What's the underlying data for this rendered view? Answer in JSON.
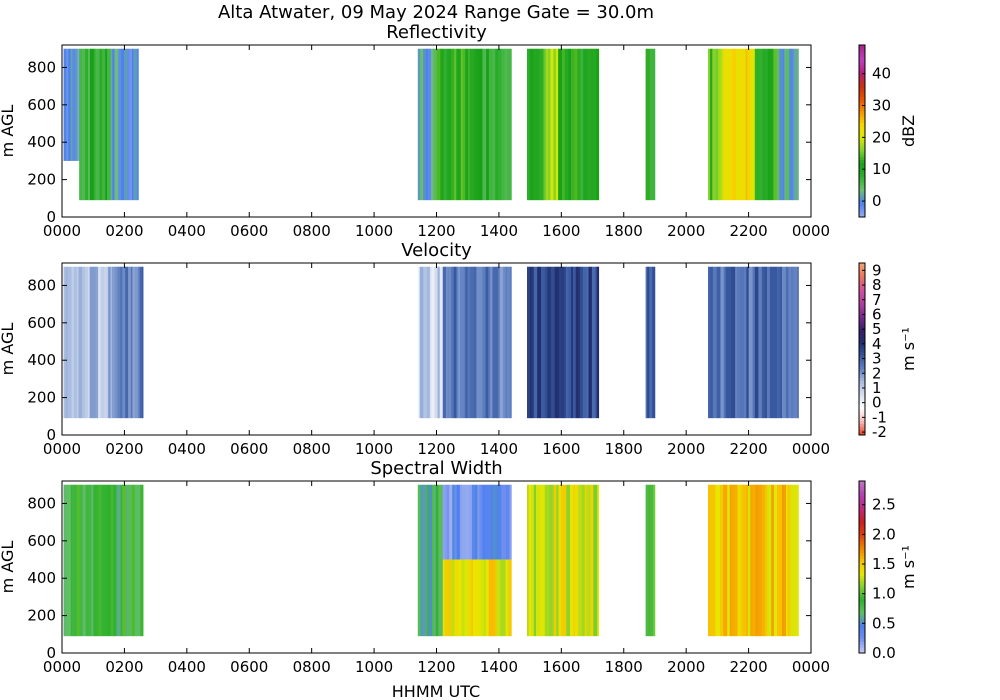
{
  "figure": {
    "suptitle": "Alta Atwater, 09 May 2024 Range Gate = 30.0m",
    "xlabel": "HHMM UTC"
  },
  "chart_data": [
    {
      "type": "heatmap",
      "title": "Reflectivity",
      "ylabel": "m AGL",
      "x_ticks": [
        "0000",
        "0200",
        "0400",
        "0600",
        "0800",
        "1000",
        "1200",
        "1400",
        "1600",
        "1800",
        "2000",
        "2200",
        "0000"
      ],
      "y_ticks": [
        "0",
        "200",
        "400",
        "600",
        "800"
      ],
      "xlim_hours": [
        0,
        24
      ],
      "ylim": [
        0,
        920
      ],
      "colorbar": {
        "label": "dBZ",
        "ticks": [
          "0",
          "10",
          "20",
          "30",
          "40"
        ],
        "range": [
          -5,
          49
        ]
      },
      "echo_segments": [
        {
          "t0": 0.05,
          "t1": 0.55,
          "top": 900,
          "bottom": 300,
          "value": -1
        },
        {
          "t0": 0.55,
          "t1": 1.55,
          "top": 900,
          "bottom": 90,
          "value": 8
        },
        {
          "t0": 1.55,
          "t1": 2.45,
          "top": 900,
          "bottom": 90,
          "value": 0
        },
        {
          "t0": 11.4,
          "t1": 12.0,
          "top": 900,
          "bottom": 90,
          "value": 1
        },
        {
          "t0": 12.0,
          "t1": 13.2,
          "top": 900,
          "bottom": 90,
          "value": 11
        },
        {
          "t0": 13.2,
          "t1": 14.4,
          "top": 900,
          "bottom": 90,
          "value": 9
        },
        {
          "t0": 14.9,
          "t1": 15.4,
          "top": 900,
          "bottom": 90,
          "value": 9
        },
        {
          "t0": 15.4,
          "t1": 15.9,
          "top": 900,
          "bottom": 90,
          "value": 17
        },
        {
          "t0": 15.9,
          "t1": 17.2,
          "top": 900,
          "bottom": 90,
          "value": 10
        },
        {
          "t0": 18.7,
          "t1": 19.0,
          "top": 900,
          "bottom": 90,
          "value": 9
        },
        {
          "t0": 20.7,
          "t1": 21.2,
          "top": 900,
          "bottom": 90,
          "value": 16
        },
        {
          "t0": 21.2,
          "t1": 22.2,
          "top": 900,
          "bottom": 90,
          "value": 24
        },
        {
          "t0": 22.2,
          "t1": 22.9,
          "top": 900,
          "bottom": 90,
          "value": 11
        },
        {
          "t0": 22.9,
          "t1": 23.6,
          "top": 900,
          "bottom": 90,
          "value": 1
        }
      ]
    },
    {
      "type": "heatmap",
      "title": "Velocity",
      "ylabel": "m AGL",
      "x_ticks": [
        "0000",
        "0200",
        "0400",
        "0600",
        "0800",
        "1000",
        "1200",
        "1400",
        "1600",
        "1800",
        "2000",
        "2200",
        "0000"
      ],
      "y_ticks": [
        "0",
        "200",
        "400",
        "600",
        "800"
      ],
      "xlim_hours": [
        0,
        24
      ],
      "ylim": [
        0,
        920
      ],
      "colorbar": {
        "label": "m s⁻¹",
        "ticks": [
          "-2",
          "-1",
          "0",
          "1",
          "2",
          "3",
          "4",
          "5",
          "6",
          "7",
          "8",
          "9"
        ],
        "range": [
          -2.2,
          9.5
        ]
      },
      "echo_segments": [
        {
          "t0": 0.05,
          "t1": 1.6,
          "top": 900,
          "bottom": 90,
          "value": 1.2
        },
        {
          "t0": 1.6,
          "t1": 2.6,
          "top": 900,
          "bottom": 90,
          "value": 2.6
        },
        {
          "t0": 11.4,
          "t1": 12.2,
          "top": 900,
          "bottom": 90,
          "value": 0.8
        },
        {
          "t0": 12.2,
          "t1": 14.4,
          "top": 900,
          "bottom": 90,
          "value": 2.5
        },
        {
          "t0": 14.9,
          "t1": 17.2,
          "top": 900,
          "bottom": 90,
          "value": 3.6
        },
        {
          "t0": 18.7,
          "t1": 19.0,
          "top": 900,
          "bottom": 90,
          "value": 3.4
        },
        {
          "t0": 20.7,
          "t1": 23.6,
          "top": 900,
          "bottom": 90,
          "value": 2.8
        }
      ]
    },
    {
      "type": "heatmap",
      "title": "Spectral Width",
      "ylabel": "m AGL",
      "x_ticks": [
        "0000",
        "0200",
        "0400",
        "0600",
        "0800",
        "1000",
        "1200",
        "1400",
        "1600",
        "1800",
        "2000",
        "2200",
        "0000"
      ],
      "y_ticks": [
        "0",
        "200",
        "400",
        "600",
        "800"
      ],
      "xlim_hours": [
        0,
        24
      ],
      "ylim": [
        0,
        920
      ],
      "colorbar": {
        "label": "m s⁻¹",
        "ticks": [
          "0.0",
          "0.5",
          "1.0",
          "1.5",
          "2.0",
          "2.5"
        ],
        "range": [
          0,
          2.9
        ]
      },
      "echo_segments": [
        {
          "t0": 0.05,
          "t1": 2.6,
          "top": 900,
          "bottom": 90,
          "value": 0.8
        },
        {
          "t0": 11.4,
          "t1": 12.2,
          "top": 900,
          "bottom": 90,
          "value": 0.7
        },
        {
          "t0": 12.2,
          "t1": 14.4,
          "top": 900,
          "bottom": 500,
          "value": 0.3
        },
        {
          "t0": 12.2,
          "t1": 14.4,
          "top": 500,
          "bottom": 90,
          "value": 1.4
        },
        {
          "t0": 14.9,
          "t1": 17.2,
          "top": 900,
          "bottom": 90,
          "value": 1.3
        },
        {
          "t0": 18.7,
          "t1": 19.0,
          "top": 900,
          "bottom": 90,
          "value": 0.9
        },
        {
          "t0": 20.7,
          "t1": 23.6,
          "top": 900,
          "bottom": 90,
          "value": 1.5
        }
      ]
    }
  ]
}
